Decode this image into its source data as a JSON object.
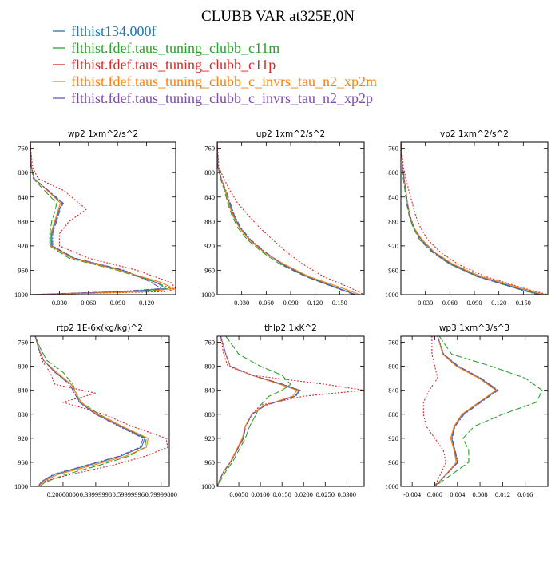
{
  "figure": {
    "title": "CLUBB VAR at325E,0N"
  },
  "legend": [
    {
      "name": "flthist134.000f",
      "color": "#1f77b4"
    },
    {
      "name": "flthist.fdef.taus_tuning_clubb_c11m",
      "color": "#2ca02c"
    },
    {
      "name": "flthist.fdef.taus_tuning_clubb_c11p",
      "color": "#d62728"
    },
    {
      "name": "flthist.fdef.taus_tuning_clubb_c_invrs_tau_n2_xp2m",
      "color": "#ff7f0e"
    },
    {
      "name": "flthist.fdef.taus_tuning_clubb_c_invrs_tau_n2_xp2p",
      "color": "#7b4fa6"
    }
  ],
  "chart_data": [
    {
      "type": "line",
      "title": "wp2  1xm^2/s^2",
      "xlim": [
        0,
        0.15
      ],
      "ylim": [
        1000,
        750
      ],
      "xticks": [
        0.03,
        0.06,
        0.09,
        0.12
      ],
      "xtick_labels": [
        "0.030",
        "0.060",
        "0.090",
        "0.120"
      ],
      "yticks": [
        760,
        800,
        840,
        880,
        920,
        960,
        1000
      ],
      "y": [
        750,
        790,
        810,
        830,
        850,
        860,
        880,
        900,
        920,
        940,
        960,
        980,
        990,
        995,
        1000
      ],
      "series": [
        {
          "values": [
            0,
            0.001,
            0.004,
            0.018,
            0.033,
            0.03,
            0.026,
            0.022,
            0.022,
            0.045,
            0.095,
            0.13,
            0.14,
            0.1,
            0.0
          ]
        },
        {
          "values": [
            0,
            0.001,
            0.003,
            0.015,
            0.027,
            0.026,
            0.022,
            0.02,
            0.02,
            0.04,
            0.09,
            0.13,
            0.145,
            0.11,
            0.0
          ]
        },
        {
          "values": [
            0,
            0.002,
            0.008,
            0.035,
            0.05,
            0.058,
            0.04,
            0.03,
            0.03,
            0.06,
            0.11,
            0.145,
            0.15,
            0.14,
            0.0
          ]
        },
        {
          "values": [
            0,
            0.001,
            0.004,
            0.018,
            0.031,
            0.029,
            0.025,
            0.021,
            0.021,
            0.043,
            0.092,
            0.135,
            0.148,
            0.12,
            0.0
          ]
        },
        {
          "values": [
            0,
            0.001,
            0.004,
            0.019,
            0.034,
            0.031,
            0.027,
            0.023,
            0.023,
            0.046,
            0.097,
            0.125,
            0.135,
            0.09,
            0.0
          ]
        }
      ]
    },
    {
      "type": "line",
      "title": "up2  1xm^2/s^2",
      "xlim": [
        0,
        0.18
      ],
      "ylim": [
        1000,
        750
      ],
      "xticks": [
        0.03,
        0.06,
        0.09,
        0.12,
        0.15
      ],
      "xtick_labels": [
        "0.030",
        "0.060",
        "0.090",
        "0.120",
        "0.150"
      ],
      "yticks": [
        760,
        800,
        840,
        880,
        920,
        960,
        1000
      ],
      "y": [
        750,
        790,
        810,
        830,
        850,
        870,
        890,
        910,
        930,
        950,
        970,
        990,
        1000
      ],
      "series": [
        {
          "values": [
            0,
            0.001,
            0.005,
            0.01,
            0.015,
            0.02,
            0.028,
            0.04,
            0.058,
            0.08,
            0.11,
            0.15,
            0.17
          ]
        },
        {
          "values": [
            0,
            0.001,
            0.004,
            0.009,
            0.013,
            0.018,
            0.025,
            0.037,
            0.055,
            0.077,
            0.108,
            0.148,
            0.168
          ]
        },
        {
          "values": [
            0,
            0.002,
            0.008,
            0.016,
            0.025,
            0.038,
            0.052,
            0.068,
            0.085,
            0.105,
            0.13,
            0.165,
            0.18
          ]
        },
        {
          "values": [
            0,
            0.001,
            0.005,
            0.01,
            0.014,
            0.019,
            0.027,
            0.039,
            0.057,
            0.082,
            0.112,
            0.155,
            0.175
          ]
        },
        {
          "values": [
            0,
            0.001,
            0.005,
            0.011,
            0.016,
            0.021,
            0.029,
            0.041,
            0.059,
            0.079,
            0.108,
            0.148,
            0.168
          ]
        }
      ]
    },
    {
      "type": "line",
      "title": "vp2  1xm^2/s^2",
      "xlim": [
        0,
        0.18
      ],
      "ylim": [
        1000,
        750
      ],
      "xticks": [
        0.03,
        0.06,
        0.09,
        0.12,
        0.15
      ],
      "xtick_labels": [
        "0.030",
        "0.060",
        "0.090",
        "0.120",
        "0.150"
      ],
      "yticks": [
        760,
        800,
        840,
        880,
        920,
        960,
        1000
      ],
      "y": [
        750,
        790,
        810,
        830,
        850,
        870,
        890,
        910,
        930,
        950,
        970,
        990,
        1000
      ],
      "series": [
        {
          "values": [
            0,
            0.002,
            0.004,
            0.006,
            0.008,
            0.011,
            0.016,
            0.025,
            0.04,
            0.062,
            0.095,
            0.145,
            0.172
          ]
        },
        {
          "values": [
            0,
            0.002,
            0.003,
            0.005,
            0.007,
            0.01,
            0.015,
            0.023,
            0.038,
            0.06,
            0.093,
            0.142,
            0.17
          ]
        },
        {
          "values": [
            0,
            0.003,
            0.006,
            0.01,
            0.014,
            0.018,
            0.024,
            0.033,
            0.048,
            0.07,
            0.103,
            0.152,
            0.18
          ]
        },
        {
          "values": [
            0,
            0.002,
            0.004,
            0.006,
            0.008,
            0.011,
            0.016,
            0.026,
            0.041,
            0.064,
            0.098,
            0.15,
            0.176
          ]
        },
        {
          "values": [
            0,
            0.002,
            0.004,
            0.006,
            0.008,
            0.011,
            0.016,
            0.024,
            0.039,
            0.061,
            0.093,
            0.142,
            0.168
          ]
        }
      ]
    },
    {
      "type": "line",
      "title": "rtp2  1E-6x(kg/kg)^2",
      "xlim": [
        0,
        0.85
      ],
      "ylim": [
        1000,
        750
      ],
      "xticks": [
        0.2,
        0.4,
        0.6,
        0.8
      ],
      "xtick_labels": [
        "0.20000000",
        "0.39999998",
        "0.59999996",
        "0.79999800"
      ],
      "yticks": [
        760,
        800,
        840,
        880,
        920,
        960,
        1000
      ],
      "y": [
        750,
        770,
        790,
        810,
        830,
        845,
        860,
        880,
        900,
        920,
        935,
        950,
        965,
        980,
        990,
        995,
        1000
      ],
      "series": [
        {
          "values": [
            0.03,
            0.05,
            0.08,
            0.15,
            0.25,
            0.28,
            0.3,
            0.4,
            0.55,
            0.7,
            0.68,
            0.55,
            0.35,
            0.15,
            0.08,
            0.06,
            0.05
          ]
        },
        {
          "values": [
            0.03,
            0.06,
            0.1,
            0.2,
            0.26,
            0.28,
            0.31,
            0.42,
            0.56,
            0.71,
            0.7,
            0.6,
            0.42,
            0.22,
            0.12,
            0.08,
            0.06
          ]
        },
        {
          "values": [
            0.03,
            0.05,
            0.07,
            0.12,
            0.15,
            0.4,
            0.2,
            0.45,
            0.62,
            0.83,
            0.84,
            0.7,
            0.5,
            0.25,
            0.1,
            0.06,
            0.05
          ]
        },
        {
          "values": [
            0.03,
            0.05,
            0.08,
            0.16,
            0.25,
            0.28,
            0.31,
            0.41,
            0.56,
            0.72,
            0.71,
            0.58,
            0.38,
            0.17,
            0.09,
            0.07,
            0.05
          ]
        },
        {
          "values": [
            0.03,
            0.05,
            0.08,
            0.15,
            0.24,
            0.27,
            0.3,
            0.4,
            0.54,
            0.69,
            0.67,
            0.54,
            0.34,
            0.14,
            0.08,
            0.06,
            0.05
          ]
        }
      ]
    },
    {
      "type": "line",
      "title": "thlp2  1xK^2",
      "xlim": [
        0,
        0.034
      ],
      "ylim": [
        1000,
        750
      ],
      "xticks": [
        0.005,
        0.01,
        0.015,
        0.02,
        0.025,
        0.03
      ],
      "xtick_labels": [
        "0.0050",
        "0.0100",
        "0.0150",
        "0.0200",
        "0.0250",
        "0.0300"
      ],
      "yticks": [
        760,
        800,
        840,
        880,
        920,
        960,
        1000
      ],
      "y": [
        750,
        780,
        800,
        815,
        830,
        840,
        850,
        865,
        880,
        900,
        920,
        940,
        960,
        975,
        990,
        1000
      ],
      "series": [
        {
          "values": [
            0.0008,
            0.002,
            0.003,
            0.008,
            0.015,
            0.019,
            0.018,
            0.011,
            0.008,
            0.0065,
            0.006,
            0.0045,
            0.003,
            0.0015,
            0.0005,
            0.0001
          ]
        },
        {
          "values": [
            0.002,
            0.005,
            0.01,
            0.015,
            0.017,
            0.015,
            0.012,
            0.01,
            0.009,
            0.0075,
            0.0065,
            0.005,
            0.0035,
            0.002,
            0.0008,
            0.0001
          ]
        },
        {
          "values": [
            0.0008,
            0.0015,
            0.0025,
            0.008,
            0.025,
            0.034,
            0.02,
            0.01,
            0.008,
            0.0065,
            0.006,
            0.0045,
            0.003,
            0.0015,
            0.0005,
            0.0001
          ]
        },
        {
          "values": [
            0.0008,
            0.002,
            0.003,
            0.008,
            0.0145,
            0.0185,
            0.0175,
            0.011,
            0.008,
            0.0065,
            0.0058,
            0.0044,
            0.003,
            0.0015,
            0.0005,
            0.0001
          ]
        },
        {
          "values": [
            0.0008,
            0.002,
            0.003,
            0.0082,
            0.0152,
            0.0192,
            0.0182,
            0.0112,
            0.0081,
            0.0066,
            0.0061,
            0.0046,
            0.0031,
            0.0016,
            0.0005,
            0.0001
          ]
        }
      ]
    },
    {
      "type": "line",
      "title": "wp3  1xm^3/s^3",
      "xlim": [
        -0.006,
        0.02
      ],
      "ylim": [
        1000,
        750
      ],
      "xticks": [
        -0.004,
        0.0,
        0.004,
        0.008,
        0.012,
        0.016
      ],
      "xtick_labels": [
        "-0.004",
        "0.000",
        "0.004",
        "0.008",
        "0.012",
        "0.016"
      ],
      "yticks": [
        760,
        800,
        840,
        880,
        920,
        960,
        1000
      ],
      "y": [
        750,
        780,
        800,
        820,
        840,
        860,
        880,
        900,
        920,
        940,
        960,
        980,
        1000
      ],
      "series": [
        {
          "values": [
            0.0005,
            0.0015,
            0.004,
            0.008,
            0.011,
            0.008,
            0.005,
            0.0035,
            0.003,
            0.0035,
            0.004,
            0.002,
            0.0
          ]
        },
        {
          "values": [
            0.0008,
            0.003,
            0.01,
            0.016,
            0.019,
            0.018,
            0.012,
            0.007,
            0.005,
            0.006,
            0.006,
            0.003,
            0.0
          ]
        },
        {
          "values": [
            -0.0005,
            -0.0005,
            0.0,
            0.0005,
            -0.001,
            -0.002,
            -0.002,
            -0.0015,
            0.0,
            0.0015,
            0.002,
            0.001,
            0.0
          ]
        },
        {
          "values": [
            0.0005,
            0.0014,
            0.0038,
            0.0078,
            0.0108,
            0.0078,
            0.0048,
            0.0034,
            0.0028,
            0.0034,
            0.0038,
            0.002,
            0.0
          ]
        },
        {
          "values": [
            0.0005,
            0.0016,
            0.0042,
            0.0082,
            0.0112,
            0.0082,
            0.0052,
            0.0036,
            0.0031,
            0.0036,
            0.0041,
            0.0021,
            0.0
          ]
        }
      ]
    }
  ]
}
